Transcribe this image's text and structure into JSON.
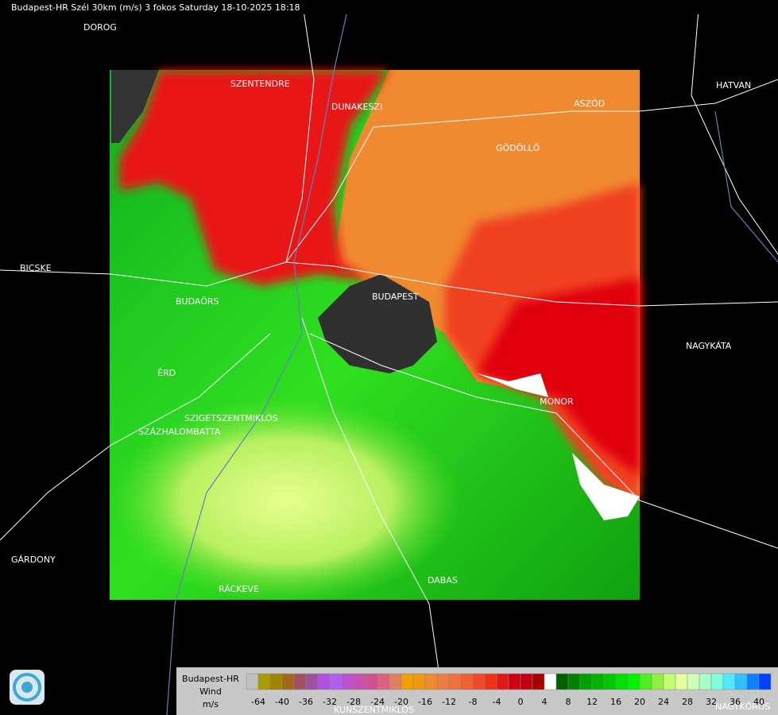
{
  "header": {
    "title": "Budapest-HR Szél 30km (m/s) 3 fokos Saturday 18-10-2025 18:18"
  },
  "towns": [
    "DOROG",
    "SZENTENDRE",
    "DUNAKESZI",
    "ASZÓD",
    "HATVAN",
    "GÖDÖLLŐ",
    "BICSKE",
    "BUDAÖRS",
    "BUDAPEST",
    "NAGYKÁTA",
    "ÉRD",
    "MONOR",
    "SZIGETSZENTMIKLÓS",
    "SZÁZHALOMBATTA",
    "GÁRDONY",
    "DABAS",
    "RÁCKEVE",
    "KUNSZENTMIKLÓS",
    "NAGYKŐRÖS"
  ],
  "legend": {
    "station": "Budapest-HR",
    "quantity": "Wind",
    "unit": "m/s",
    "colors": [
      "#c0c0c0",
      "#a89a00",
      "#a08400",
      "#a06818",
      "#a05060",
      "#a050a0",
      "#b050e0",
      "#b060f0",
      "#c050d0",
      "#c850b0",
      "#d05090",
      "#e06080",
      "#e08060",
      "#f0a000",
      "#f09810",
      "#f08a30",
      "#f07c40",
      "#f07040",
      "#f06030",
      "#f04828",
      "#f03018",
      "#e01818",
      "#d00010",
      "#c00010",
      "#a80000",
      "#ffffff",
      "#006000",
      "#008000",
      "#00a000",
      "#00b400",
      "#00c800",
      "#00e000",
      "#00f400",
      "#50f020",
      "#90f040",
      "#c0ff70",
      "#e8ffa0",
      "#d0ffb8",
      "#a8ffc8",
      "#80ffe0",
      "#50e8ff",
      "#30c0ff",
      "#1080ff",
      "#0040ff"
    ],
    "ticks": [
      -64,
      -40,
      -36,
      -32,
      -28,
      -24,
      -20,
      -16,
      -12,
      -8,
      -4,
      0,
      4,
      8,
      12,
      16,
      20,
      24,
      28,
      32,
      36,
      40
    ]
  }
}
